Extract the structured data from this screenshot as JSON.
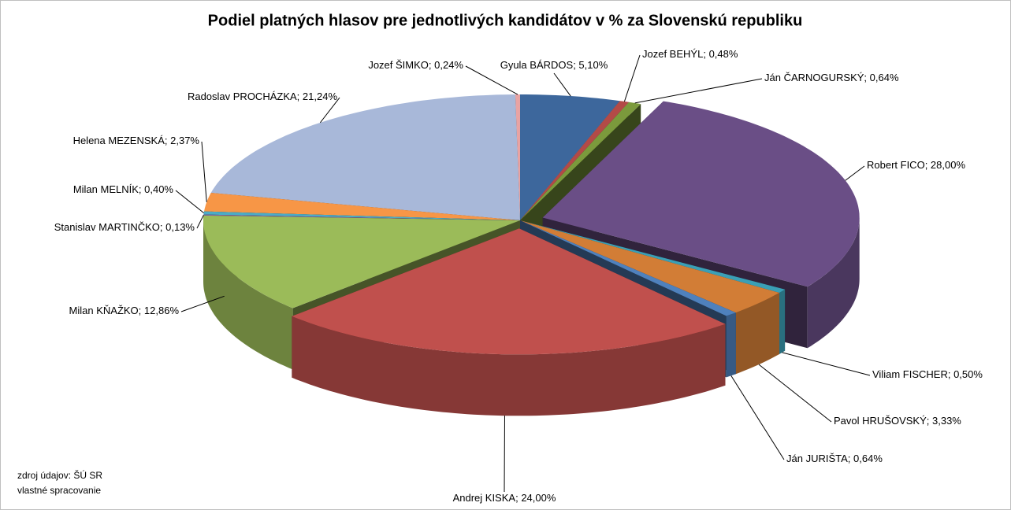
{
  "chart_data": {
    "type": "pie3d",
    "title": "Podiel platných hlasov pre jednotlivých kandidátov v % za Slovenskú republiku",
    "categories": [
      "Gyula BÁRDOS",
      "Jozef BEHÝL",
      "Ján ČARNOGURSKÝ",
      "Robert FICO",
      "Viliam FISCHER",
      "Pavol HRUŠOVSKÝ",
      "Ján JURIŠTA",
      "Andrej KISKA",
      "Milan KŇAŽKO",
      "Stanislav MARTINČKO",
      "Milan MELNÍK",
      "Helena MEZENSKÁ",
      "Radoslav PROCHÁZKA",
      "Jozef ŠIMKO"
    ],
    "values": [
      5.1,
      0.48,
      0.64,
      28.0,
      0.5,
      3.33,
      0.64,
      24.0,
      12.86,
      0.13,
      0.4,
      2.37,
      21.24,
      0.24
    ],
    "value_labels": [
      "5,10%",
      "0,48%",
      "0,64%",
      "28,00%",
      "0,50%",
      "3,33%",
      "0,64%",
      "24,00%",
      "12,86%",
      "0,13%",
      "0,40%",
      "2,37%",
      "21,24%",
      "0,24%"
    ],
    "label_separator": "; ",
    "colors": [
      "#3d679c",
      "#b34a47",
      "#7b9a3c",
      "#6a4e86",
      "#3a9fb6",
      "#d27d36",
      "#4f81bd",
      "#c0504d",
      "#9bbb59",
      "#8064a2",
      "#4bacc6",
      "#f79646",
      "#a8b8d9",
      "#e8a3a3"
    ],
    "notes": [
      "zdroj údajov: ŠÚ SR",
      "vlastné spracovanie"
    ]
  }
}
